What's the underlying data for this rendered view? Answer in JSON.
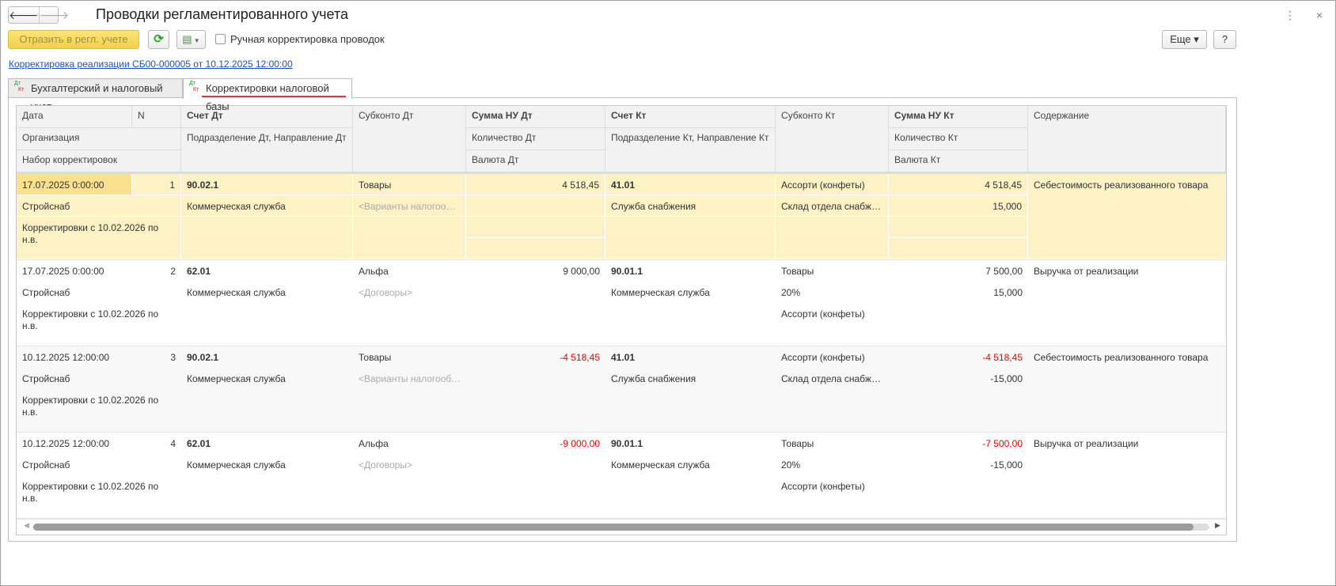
{
  "window": {
    "title": "Проводки регламентированного учета",
    "back_icon": "arrow-left",
    "forward_icon": "arrow-right",
    "menu_icon": "⋮",
    "close_icon": "×"
  },
  "toolbar": {
    "post_label": "Отразить в регл. учете",
    "refresh_icon": "⟳",
    "copy_icon": "copy-dropdown",
    "manual_label": "Ручная корректировка проводок",
    "manual_checked": false,
    "more_label": "Еще ▾",
    "help_label": "?"
  },
  "doc_link": "Корректировка реализации СБ00-000005 от 10.12.2025 12:00:00",
  "tabs": [
    {
      "label": "Бухгалтерский и налоговый учет",
      "active": false
    },
    {
      "label": "Корректировки налоговой базы",
      "active": true
    }
  ],
  "tab_icon": {
    "dt": "Дт",
    "kt": "Кт"
  },
  "columns": {
    "date": "Дата",
    "n": "N",
    "org": "Организация",
    "set": "Набор корректировок",
    "acc_dt": "Счет Дт",
    "div_dt": "Подразделение Дт, Направление Дт",
    "sub_dt": "Субконто Дт",
    "sum_dt": "Сумма НУ Дт",
    "qty_dt": "Количество Дт",
    "cur_dt": "Валюта Дт",
    "acc_kt": "Счет Кт",
    "div_kt": "Подразделение Кт, Направление Кт",
    "sub_kt": "Субконто Кт",
    "sum_kt": "Сумма НУ Кт",
    "qty_kt": "Количество Кт",
    "cur_kt": "Валюта Кт",
    "content": "Содержание"
  },
  "rows": [
    {
      "date": "17.07.2025 0:00:00",
      "n": "1",
      "org": "Стройснаб",
      "set": "Корректировки с 10.02.2026 по н.в.",
      "acc_dt": "90.02.1",
      "div_dt": "Коммерческая служба",
      "sub_dt": [
        "Товары",
        "<Варианты налогообложения>"
      ],
      "sum_dt": "4 518,45",
      "qty_dt": "",
      "acc_kt": "41.01",
      "div_kt": "Служба снабжения",
      "sub_kt": [
        "Ассорти (конфеты)",
        "Склад отдела снабжения",
        ""
      ],
      "sum_kt": "4 518,45",
      "qty_kt": "15,000",
      "content": "Себестоимость реализованного товара"
    },
    {
      "date": "17.07.2025 0:00:00",
      "n": "2",
      "org": "Стройснаб",
      "set": "Корректировки с 10.02.2026 по н.в.",
      "acc_dt": "62.01",
      "div_dt": "Коммерческая служба",
      "sub_dt": [
        "Альфа",
        "<Договоры>"
      ],
      "sum_dt": "9 000,00",
      "qty_dt": "",
      "acc_kt": "90.01.1",
      "div_kt": "Коммерческая служба",
      "sub_kt": [
        "Товары",
        "20%",
        "Ассорти (конфеты)"
      ],
      "sum_kt": "7 500,00",
      "qty_kt": "15,000",
      "content": "Выручка от реализации"
    },
    {
      "date": "10.12.2025 12:00:00",
      "n": "3",
      "org": "Стройснаб",
      "set": "Корректировки с 10.02.2026 по н.в.",
      "acc_dt": "90.02.1",
      "div_dt": "Коммерческая служба",
      "sub_dt": [
        "Товары",
        "<Варианты налогообложения>"
      ],
      "sum_dt": "-4 518,45",
      "qty_dt": "",
      "acc_kt": "41.01",
      "div_kt": "Служба снабжения",
      "sub_kt": [
        "Ассорти (конфеты)",
        "Склад отдела снабжения",
        ""
      ],
      "sum_kt": "-4 518,45",
      "qty_kt": "-15,000",
      "content": "Себестоимость реализованного товара"
    },
    {
      "date": "10.12.2025 12:00:00",
      "n": "4",
      "org": "Стройснаб",
      "set": "Корректировки с 10.02.2026 по н.в.",
      "acc_dt": "62.01",
      "div_dt": "Коммерческая служба",
      "sub_dt": [
        "Альфа",
        "<Договоры>"
      ],
      "sum_dt": "-9 000,00",
      "qty_dt": "",
      "acc_kt": "90.01.1",
      "div_kt": "Коммерческая служба",
      "sub_kt": [
        "Товары",
        "20%",
        "Ассорти (конфеты)"
      ],
      "sum_kt": "-7 500,00",
      "qty_kt": "-15,000",
      "content": "Выручка от реализации"
    }
  ],
  "colors": {
    "accent_yellow": "#f1d04a",
    "selected_row": "#fdf1c6",
    "negative": "#e00000",
    "link": "#1c4fc4",
    "tab_underline": "#f0303a"
  }
}
